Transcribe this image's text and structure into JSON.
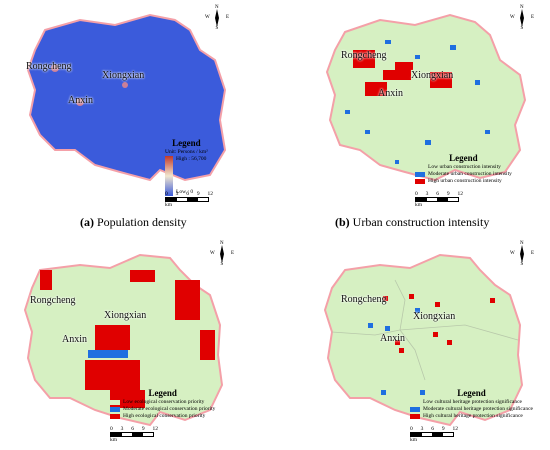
{
  "panels": {
    "a": {
      "caption_letter": "(a)",
      "caption_text": " Population density",
      "places": {
        "rongcheng": "Rongcheng",
        "xiongxian": "Xiongxian",
        "anxin": "Anxin"
      },
      "legend_title": "Legend",
      "unit": "Unit: Persons / km²",
      "high": "High : 56,700",
      "low": "Low : 0"
    },
    "b": {
      "caption_letter": "(b)",
      "caption_text": " Urban construction intensity",
      "places": {
        "rongcheng": "Rongcheng",
        "xiongxian": "Xiongxian",
        "anxin": "Anxin"
      },
      "legend_title": "Legend",
      "items": [
        "Low urban construction intensity",
        "Moderate urban construction intensity",
        "High urban construction intensity"
      ]
    },
    "c": {
      "places": {
        "rongcheng": "Rongcheng",
        "xiongxian": "Xiongxian",
        "anxin": "Anxin"
      },
      "legend_title": "Legend",
      "items": [
        "Low ecological conservation priority",
        "Moderate ecological conservation priority",
        "High ecological conservation priority"
      ]
    },
    "d": {
      "places": {
        "rongcheng": "Rongcheng",
        "xiongxian": "Xiongxian",
        "anxin": "Anxin"
      },
      "legend_title": "Legend",
      "items": [
        "Low cultural heritage protection significance",
        "Moderate cultural heritage protection significance",
        "High cultural heritage protection significance"
      ]
    }
  },
  "scale": {
    "ticks": [
      "0",
      "3",
      "6",
      "9",
      "12"
    ],
    "unit": "km"
  },
  "compass": {
    "n": "N",
    "s": "S",
    "w": "W",
    "e": "E"
  },
  "colors": {
    "population_blue": "#3b5bdb",
    "light_green": "#d6f0c2",
    "moderate_blue": "#1f6fe0",
    "high_red": "#e00000",
    "boundary_pink": "#f4a0a8"
  }
}
